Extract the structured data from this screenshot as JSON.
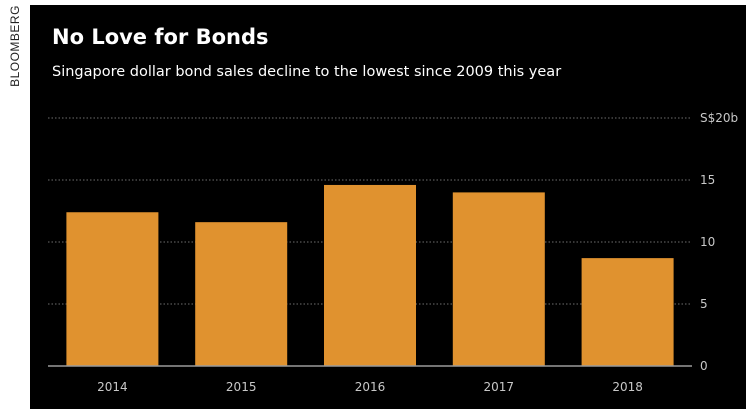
{
  "credit": "BLOOMBERG",
  "chart_data": {
    "type": "bar",
    "title": "No Love for Bonds",
    "subtitle": "Singapore dollar bond sales decline to the lowest since 2009 this year",
    "categories": [
      "2014",
      "2015",
      "2016",
      "2017",
      "2018"
    ],
    "values": [
      12.4,
      11.6,
      14.6,
      14.0,
      8.7
    ],
    "y_ticks": [
      {
        "value": 0,
        "label": "0"
      },
      {
        "value": 5,
        "label": "5"
      },
      {
        "value": 10,
        "label": "10"
      },
      {
        "value": 15,
        "label": "15"
      },
      {
        "value": 20,
        "label": "S$20b"
      }
    ],
    "ylim": [
      0,
      20
    ],
    "xlabel": "",
    "ylabel": "",
    "grid": true,
    "bar_color": "#E0922F",
    "background_color": "#000000"
  }
}
